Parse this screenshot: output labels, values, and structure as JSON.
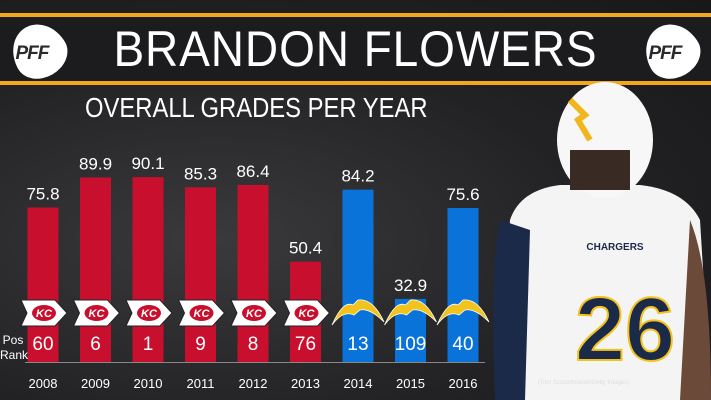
{
  "header": {
    "title": "BRANDON FLOWERS",
    "logo": "PFF",
    "subtitle": "OVERALL GRADES PER YEAR"
  },
  "credit": "(Tom Szczerbowski/Getty Images)",
  "pos_rank_label": [
    "Pos",
    "Rank"
  ],
  "colors": {
    "chiefs": "#c8102e",
    "chargers": "#0a73d9",
    "accent": "#f2a81d"
  },
  "chart_data": {
    "type": "bar",
    "title": "OVERALL GRADES PER YEAR",
    "categories": [
      "2008",
      "2009",
      "2010",
      "2011",
      "2012",
      "2013",
      "2014",
      "2015",
      "2016"
    ],
    "values": [
      75.8,
      89.9,
      90.1,
      85.3,
      86.4,
      50.4,
      84.2,
      32.9,
      75.6
    ],
    "value_labels": [
      "75.8",
      "89.9",
      "90.1",
      "85.3",
      "86.4",
      "50.4",
      "84.2",
      "32.9",
      "75.6"
    ],
    "pos_rank": [
      "60",
      "6",
      "1",
      "9",
      "8",
      "76",
      "13",
      "109",
      "40"
    ],
    "teams": [
      "chiefs",
      "chiefs",
      "chiefs",
      "chiefs",
      "chiefs",
      "chiefs",
      "chargers",
      "chargers",
      "chargers"
    ],
    "team_icons": [
      "chiefs-arrowhead-icon",
      "chiefs-arrowhead-icon",
      "chiefs-arrowhead-icon",
      "chiefs-arrowhead-icon",
      "chiefs-arrowhead-icon",
      "chiefs-arrowhead-icon",
      "chargers-bolt-icon",
      "chargers-bolt-icon",
      "chargers-bolt-icon"
    ],
    "grid": false
  }
}
